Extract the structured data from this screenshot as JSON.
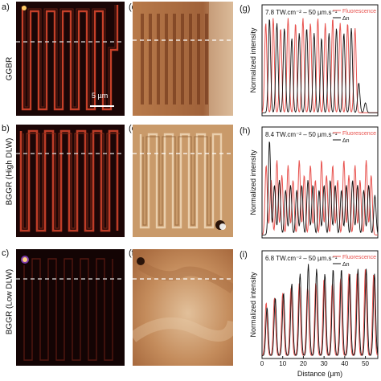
{
  "rows": [
    {
      "label": "GGBR"
    },
    {
      "label": "BGGR (High DLW)"
    },
    {
      "label": "BGGR (Low DLW)"
    }
  ],
  "panels": {
    "a": "a)",
    "b": "b)",
    "c": "c)",
    "d": "(d)",
    "e": "(e)",
    "f": "(f)",
    "g": "(g)",
    "h": "(h)",
    "i": "(i)"
  },
  "scale_bar": "5 µm",
  "colors": {
    "fluorescence": "#e8534f",
    "dn": "#111111",
    "fluor_bg": "#1a0606",
    "fluor_line": "#d9472e"
  },
  "chart_data": [
    {
      "type": "line",
      "annotation": "7.8 TW.cm⁻² – 50 µm.s⁻¹",
      "xlabel": "",
      "ylabel": "Normalized intensity",
      "xlim": [
        0,
        56
      ],
      "x_ticks": [],
      "legend": [
        "Fluorescence",
        "Δn"
      ],
      "legend_position": "top-right",
      "series": [
        {
          "name": "Fluorescence",
          "peaks": [
            1.8,
            5.4,
            9.0,
            12.6,
            16.2,
            19.8,
            23.4,
            27.0,
            30.6,
            34.2,
            37.8,
            41.4,
            45.0
          ],
          "peak_heights": [
            0.9,
            0.95,
            0.85,
            0.95,
            0.9,
            0.95,
            0.9,
            0.95,
            0.9,
            0.95,
            0.9,
            0.9,
            0.85
          ]
        },
        {
          "name": "Δn",
          "peaks": [
            3.6,
            7.2,
            10.8,
            14.4,
            18.0,
            21.6,
            25.2,
            28.8,
            32.4,
            36.0,
            39.6,
            43.2,
            46.8,
            50.0
          ],
          "peak_heights": [
            0.95,
            0.9,
            0.85,
            0.75,
            0.8,
            0.85,
            0.8,
            0.75,
            0.8,
            0.85,
            0.8,
            0.85,
            0.3,
            0.1
          ]
        }
      ]
    },
    {
      "type": "line",
      "annotation": "8.4 TW.cm⁻² – 50 µm.s⁻¹",
      "xlabel": "",
      "ylabel": "Normalized intensity",
      "xlim": [
        0,
        56
      ],
      "x_ticks": [],
      "legend": [
        "Fluorescence",
        "Δn"
      ],
      "legend_position": "top-right",
      "series": [
        {
          "name": "Fluorescence",
          "peaks": [
            2.0,
            4.4,
            7.2,
            9.6,
            12.6,
            15.0,
            18.0,
            20.4,
            23.4,
            25.8,
            28.8,
            31.2,
            34.2,
            36.6,
            39.6,
            42.0,
            45.0,
            47.4,
            50.4,
            52.8
          ],
          "peak_heights": [
            0.7,
            0.55,
            0.75,
            0.6,
            0.7,
            0.55,
            0.75,
            0.6,
            0.7,
            0.55,
            0.75,
            0.6,
            0.7,
            0.55,
            0.75,
            0.6,
            0.7,
            0.55,
            0.75,
            0.6
          ]
        },
        {
          "name": "Δn",
          "peaks": [
            3.6,
            6.0,
            8.4,
            11.4,
            13.8,
            16.8,
            19.2,
            22.2,
            24.6,
            27.6,
            30.0,
            33.0,
            35.4,
            38.4,
            40.8,
            43.8,
            46.2,
            49.2,
            51.6,
            54.6
          ],
          "peak_heights": [
            0.95,
            0.5,
            0.55,
            0.45,
            0.5,
            0.45,
            0.5,
            0.55,
            0.5,
            0.45,
            0.5,
            0.55,
            0.5,
            0.45,
            0.5,
            0.55,
            0.5,
            0.45,
            0.5,
            0.4
          ]
        }
      ]
    },
    {
      "type": "line",
      "annotation": "6.8 TW.cm⁻² – 50 µm.s⁻¹",
      "xlabel": "Distance (µm)",
      "ylabel": "Normalized intensity",
      "xlim": [
        0,
        56
      ],
      "x_ticks": [
        0,
        10,
        20,
        30,
        40,
        50
      ],
      "legend": [
        "Fluorescence",
        "Δn"
      ],
      "legend_position": "top-right",
      "series": [
        {
          "name": "Fluorescence",
          "peaks": [
            2.0,
            6.0,
            10.0,
            14.0,
            18.0,
            22.0,
            26.0,
            30.0,
            34.0,
            38.0,
            42.0,
            46.0,
            50.0,
            54.0
          ],
          "peak_heights": [
            0.55,
            0.6,
            0.65,
            0.7,
            0.75,
            0.7,
            0.75,
            0.8,
            0.75,
            0.8,
            0.85,
            0.85,
            0.9,
            0.85
          ]
        },
        {
          "name": "Δn",
          "peaks": [
            2.4,
            6.4,
            10.4,
            14.4,
            18.4,
            22.4,
            26.4,
            30.4,
            34.4,
            38.4,
            42.4,
            46.4,
            50.4,
            54.4
          ],
          "peak_heights": [
            0.5,
            0.6,
            0.65,
            0.75,
            0.85,
            0.95,
            0.9,
            0.85,
            0.9,
            0.9,
            0.85,
            0.9,
            0.9,
            0.85
          ]
        }
      ]
    }
  ]
}
